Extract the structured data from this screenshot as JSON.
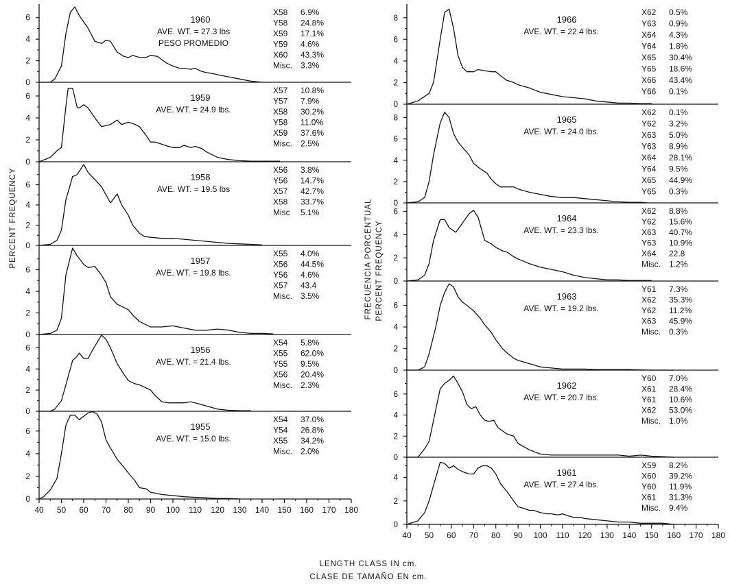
{
  "figure": {
    "xlabel_en": "LENGTH CLASS IN cm.",
    "xlabel_es": "CLASE DE TAMAÑO EN cm.",
    "left_ylabel": "PERCENT FREQUENCY",
    "right_ylabel_es": "FRECUENCIA PORCENTUAL",
    "right_ylabel_en": "PERCENT FREQUENCY",
    "x_ticks": [
      "40",
      "50",
      "60",
      "70",
      "80",
      "90",
      "100",
      "110",
      "120",
      "130",
      "140",
      "150",
      "160",
      "170",
      "180"
    ]
  },
  "chart_data": [
    {
      "type": "line",
      "column": "left",
      "row": 0,
      "year": "1960",
      "ave": "AVE. WT. = 27.3 lbs",
      "ave2": "PESO PROMEDIO",
      "xlim": [
        40,
        180
      ],
      "ylim": [
        0,
        7
      ],
      "yticks": [
        "0",
        "2",
        "4",
        "6"
      ],
      "comp_labels": [
        "X58",
        "Y58",
        "X59",
        "Y59",
        "X60",
        "Misc."
      ],
      "comp_values": [
        "6.9%",
        "24.8%",
        "17.1%",
        "4.6%",
        "43.3%",
        "3.3%"
      ],
      "x": [
        40,
        45,
        47,
        50,
        52,
        54,
        56,
        58,
        60,
        62,
        65,
        68,
        70,
        72,
        75,
        78,
        80,
        82,
        85,
        88,
        90,
        93,
        95,
        97,
        100,
        103,
        105,
        108,
        110,
        113,
        115,
        118,
        120,
        125,
        130,
        135,
        140
      ],
      "y": [
        0,
        0,
        0.3,
        1.5,
        4.5,
        6.5,
        7.0,
        6.2,
        5.6,
        5.0,
        3.8,
        3.6,
        3.9,
        3.8,
        2.8,
        2.4,
        2.3,
        2.5,
        2.3,
        2.3,
        2.5,
        2.4,
        2.1,
        1.8,
        1.5,
        1.3,
        1.3,
        1.2,
        1.3,
        1.0,
        0.9,
        0.8,
        0.7,
        0.5,
        0.3,
        0.1,
        0
      ]
    },
    {
      "type": "line",
      "column": "left",
      "row": 1,
      "year": "1959",
      "ave": "AVE. WT. = 24.9 lbs.",
      "ave2": "",
      "xlim": [
        40,
        180
      ],
      "ylim": [
        0,
        7
      ],
      "yticks": [
        "0",
        "2",
        "4",
        "6"
      ],
      "comp_labels": [
        "X57",
        "Y57",
        "X58",
        "Y58",
        "X59",
        "Misc."
      ],
      "comp_values": [
        "10.8%",
        "7.9%",
        "30.2%",
        "11.0%",
        "37.6%",
        "2.5%"
      ],
      "x": [
        40,
        45,
        48,
        50,
        52,
        53,
        55,
        57,
        58,
        60,
        62,
        65,
        68,
        70,
        72,
        75,
        77,
        80,
        82,
        85,
        88,
        90,
        92,
        95,
        98,
        100,
        103,
        105,
        108,
        110,
        113,
        115,
        118,
        120,
        125,
        130,
        135,
        140,
        145,
        148
      ],
      "y": [
        0,
        0.4,
        1.0,
        1.3,
        5.0,
        6.7,
        6.7,
        5.0,
        4.9,
        5.2,
        4.9,
        4.0,
        3.2,
        3.3,
        3.4,
        3.8,
        3.4,
        3.6,
        3.5,
        3.2,
        2.4,
        1.8,
        1.8,
        1.6,
        1.4,
        1.3,
        1.3,
        1.5,
        1.3,
        1.4,
        1.2,
        0.9,
        0.6,
        0.4,
        0.2,
        0.1,
        0.05,
        0.05,
        0.05,
        0.05
      ]
    },
    {
      "type": "line",
      "column": "left",
      "row": 2,
      "year": "1958",
      "ave": "AVE. WT. = 19.5 lbs",
      "ave2": "",
      "xlim": [
        40,
        180
      ],
      "ylim": [
        0,
        8
      ],
      "yticks": [
        "0",
        "2",
        "4",
        "6"
      ],
      "comp_labels": [
        "X56",
        "Y56",
        "X57",
        "X58",
        "Misc"
      ],
      "comp_values": [
        "3.8%",
        "14.7%",
        "42.7%",
        "33.7%",
        "5.1%"
      ],
      "x": [
        40,
        45,
        48,
        50,
        52,
        55,
        57,
        60,
        62,
        65,
        68,
        70,
        72,
        75,
        77,
        80,
        82,
        85,
        87,
        90,
        95,
        100,
        105,
        110,
        115,
        120,
        125,
        130,
        135,
        140
      ],
      "y": [
        0,
        0.1,
        0.5,
        1.5,
        4.5,
        6.8,
        7.0,
        8.0,
        7.2,
        6.5,
        5.8,
        5.0,
        4.2,
        5.1,
        4.0,
        3.0,
        2.0,
        1.2,
        0.9,
        0.8,
        0.7,
        0.7,
        0.6,
        0.5,
        0.4,
        0.3,
        0.2,
        0.15,
        0.1,
        0.05
      ]
    },
    {
      "type": "line",
      "column": "left",
      "row": 3,
      "year": "1957",
      "ave": "AVE. WT. = 19.8 lbs.",
      "ave2": "",
      "xlim": [
        40,
        180
      ],
      "ylim": [
        0,
        8
      ],
      "yticks": [
        "0",
        "2",
        "4",
        "6"
      ],
      "comp_labels": [
        "X55",
        "X56",
        "Y56",
        "X57",
        "Misc."
      ],
      "comp_values": [
        "4.0%",
        "44.5%",
        "4.6%",
        "43.4",
        "3.5%"
      ],
      "x": [
        40,
        45,
        48,
        50,
        52,
        55,
        57,
        60,
        62,
        65,
        68,
        70,
        72,
        75,
        78,
        80,
        82,
        85,
        88,
        90,
        95,
        100,
        105,
        110,
        115,
        120,
        125,
        130,
        135,
        140,
        145
      ],
      "y": [
        0,
        0.1,
        0.4,
        1.5,
        5.5,
        8.0,
        7.3,
        6.5,
        6.2,
        6.3,
        5.5,
        4.8,
        3.5,
        2.8,
        2.5,
        2.3,
        1.8,
        1.2,
        0.9,
        0.7,
        0.7,
        0.8,
        0.6,
        0.4,
        0.4,
        0.5,
        0.4,
        0.2,
        0.1,
        0.1,
        0.05
      ]
    },
    {
      "type": "line",
      "column": "left",
      "row": 4,
      "year": "1956",
      "ave": "AVE. WT. = 21.4 lbs.",
      "ave2": "",
      "xlim": [
        40,
        180
      ],
      "ylim": [
        0,
        7
      ],
      "yticks": [
        "0",
        "2",
        "4",
        "6"
      ],
      "comp_labels": [
        "X54",
        "X55",
        "Y55",
        "X56",
        "Misc."
      ],
      "comp_values": [
        "5.8%",
        "62.0%",
        "9.5%",
        "20.4%",
        "2.3%"
      ],
      "x": [
        40,
        45,
        47,
        50,
        52,
        55,
        57,
        58,
        60,
        62,
        64,
        66,
        68,
        70,
        72,
        75,
        78,
        80,
        83,
        85,
        87,
        90,
        92,
        95,
        98,
        100,
        105,
        108,
        110,
        115,
        120,
        125,
        130,
        135
      ],
      "y": [
        0,
        0,
        0.2,
        1.0,
        2.5,
        4.8,
        5.2,
        5.5,
        5.0,
        5.0,
        5.8,
        6.5,
        7.2,
        6.8,
        6.0,
        4.5,
        3.5,
        2.9,
        2.6,
        2.5,
        2.3,
        2.0,
        1.5,
        0.9,
        0.8,
        0.8,
        0.8,
        0.9,
        0.8,
        0.5,
        0.2,
        0.1,
        0.05,
        0.05
      ]
    },
    {
      "type": "line",
      "column": "left",
      "row": 5,
      "year": "1955",
      "ave": "AVE. WT. = 15.0 lbs.",
      "ave2": "",
      "xlim": [
        40,
        180
      ],
      "ylim": [
        0,
        7.5
      ],
      "yticks": [
        "0",
        "2",
        "4",
        "6"
      ],
      "comp_labels": [
        "X54",
        "Y54",
        "X55",
        "Misc."
      ],
      "comp_values": [
        "37.0%",
        "26.8%",
        "34.2%",
        "2.0%"
      ],
      "x": [
        40,
        42,
        45,
        48,
        50,
        52,
        54,
        56,
        58,
        60,
        62,
        64,
        66,
        68,
        70,
        72,
        75,
        78,
        80,
        83,
        85,
        88,
        90,
        95,
        100,
        105,
        110,
        115,
        120,
        125,
        130
      ],
      "y": [
        0,
        0.2,
        0.8,
        1.8,
        4.0,
        6.5,
        7.4,
        7.4,
        7.0,
        7.3,
        7.6,
        7.7,
        7.5,
        6.8,
        5.2,
        4.5,
        3.5,
        2.8,
        2.3,
        1.6,
        1.0,
        0.9,
        0.6,
        0.4,
        0.3,
        0.2,
        0.15,
        0.1,
        0.05,
        0.05,
        0
      ]
    },
    {
      "type": "line",
      "column": "right",
      "row": 0,
      "year": "1966",
      "ave": "AVE. WT. = 22.4 lbs.",
      "ave2": "",
      "xlim": [
        40,
        180
      ],
      "ylim": [
        0,
        9
      ],
      "yticks": [
        "0",
        "2",
        "4",
        "6",
        "8"
      ],
      "comp_labels": [
        "X62",
        "Y63",
        "X64",
        "Y64",
        "X65",
        "Y65",
        "X66",
        "Y66"
      ],
      "comp_values": [
        "0.5%",
        "0.9%",
        "4.3%",
        "1.8%",
        "30.4%",
        "18.6%",
        "43.4%",
        "0.1%"
      ],
      "x": [
        40,
        45,
        50,
        52,
        55,
        57,
        59,
        61,
        63,
        65,
        67,
        70,
        72,
        75,
        78,
        80,
        83,
        85,
        88,
        90,
        95,
        100,
        105,
        110,
        115,
        120,
        125,
        130,
        135,
        140,
        145,
        150
      ],
      "y": [
        0,
        0.3,
        1.0,
        2.0,
        6.0,
        8.5,
        8.8,
        7.0,
        4.5,
        3.4,
        3.0,
        3.0,
        3.2,
        3.1,
        3.0,
        3.0,
        2.5,
        2.2,
        2.0,
        1.8,
        1.5,
        1.1,
        0.9,
        0.7,
        0.6,
        0.5,
        0.3,
        0.2,
        0.1,
        0.1,
        0.05,
        0.05
      ]
    },
    {
      "type": "line",
      "column": "right",
      "row": 1,
      "year": "1965",
      "ave": "AVE. WT. = 24.0 lbs.",
      "ave2": "",
      "xlim": [
        40,
        180
      ],
      "ylim": [
        0,
        9
      ],
      "yticks": [
        "0",
        "2",
        "4",
        "6",
        "8"
      ],
      "comp_labels": [
        "X62",
        "Y62",
        "X63",
        "Y63",
        "X64",
        "Y64",
        "X65",
        "Y65"
      ],
      "comp_values": [
        "0.1%",
        "3.2%",
        "5.0%",
        "8.9%",
        "28.1%",
        "9.5%",
        "44.9%",
        "0.3%"
      ],
      "x": [
        40,
        45,
        48,
        50,
        52,
        55,
        57,
        59,
        61,
        63,
        65,
        68,
        70,
        73,
        76,
        78,
        80,
        82,
        85,
        88,
        90,
        95,
        100,
        105,
        110,
        115,
        120,
        125,
        130,
        135,
        140,
        145,
        148
      ],
      "y": [
        0,
        0.1,
        0.5,
        2.0,
        4.5,
        7.5,
        8.5,
        8.0,
        6.5,
        5.7,
        5.2,
        4.5,
        3.7,
        3.2,
        2.8,
        2.2,
        1.8,
        1.5,
        1.5,
        1.5,
        1.3,
        1.0,
        0.8,
        0.6,
        0.5,
        0.5,
        0.4,
        0.3,
        0.2,
        0.1,
        0.05,
        0.05,
        0
      ]
    },
    {
      "type": "line",
      "column": "right",
      "row": 2,
      "year": "1964",
      "ave": "AVE. WT. = 23.3 lbs.",
      "ave2": "",
      "xlim": [
        40,
        180
      ],
      "ylim": [
        0,
        6.5
      ],
      "yticks": [
        "0",
        "2",
        "4",
        "6"
      ],
      "comp_labels": [
        "X62",
        "Y62",
        "X63",
        "Y63",
        "X64",
        "Misc."
      ],
      "comp_values": [
        "8.8%",
        "15.6%",
        "40.7%",
        "10.9%",
        "22.8",
        "1.2%"
      ],
      "x": [
        40,
        45,
        48,
        50,
        52,
        55,
        57,
        59,
        62,
        65,
        68,
        70,
        72,
        75,
        78,
        80,
        83,
        85,
        88,
        90,
        95,
        100,
        105,
        110,
        115,
        120,
        125,
        130,
        135,
        140,
        145,
        150
      ],
      "y": [
        0,
        0.1,
        0.5,
        1.5,
        3.5,
        5.3,
        5.3,
        4.6,
        4.2,
        5.0,
        5.8,
        6.1,
        5.5,
        3.5,
        3.2,
        2.9,
        2.6,
        2.5,
        2.1,
        1.9,
        1.5,
        1.2,
        1.0,
        0.8,
        0.5,
        0.3,
        0.2,
        0.1,
        0.1,
        0.05,
        0.05,
        0.05
      ]
    },
    {
      "type": "line",
      "column": "right",
      "row": 3,
      "year": "1963",
      "ave": "AVE. WT. = 19.2 lbs.",
      "ave2": "",
      "xlim": [
        40,
        180
      ],
      "ylim": [
        0,
        8
      ],
      "yticks": [
        "0",
        "2",
        "4",
        "6"
      ],
      "comp_labels": [
        "Y61",
        "X62",
        "Y62",
        "X63",
        "Misc."
      ],
      "comp_values": [
        "7.3%",
        "35.3%",
        "11.2%",
        "45.9%",
        "0.3%"
      ],
      "x": [
        40,
        45,
        48,
        50,
        53,
        55,
        57,
        59,
        61,
        63,
        65,
        67,
        70,
        73,
        75,
        78,
        80,
        83,
        85,
        88,
        90,
        95,
        100,
        105,
        110,
        115,
        120,
        125,
        130,
        140,
        150,
        160
      ],
      "y": [
        0,
        0,
        0.3,
        1.5,
        4.0,
        6.0,
        7.2,
        8.0,
        7.7,
        6.8,
        6.3,
        6.0,
        5.5,
        4.8,
        4.2,
        3.5,
        2.8,
        2.0,
        1.6,
        1.1,
        0.9,
        0.6,
        0.3,
        0.2,
        0.1,
        0.1,
        0.1,
        0.05,
        0.05,
        0.05,
        0,
        0
      ]
    },
    {
      "type": "line",
      "column": "right",
      "row": 4,
      "year": "1962",
      "ave": "AVE. WT. = 20.7 lbs.",
      "ave2": "",
      "xlim": [
        40,
        180
      ],
      "ylim": [
        0,
        8
      ],
      "yticks": [
        "0",
        "2",
        "4",
        "6"
      ],
      "comp_labels": [
        "Y60",
        "X61",
        "Y61",
        "X62",
        "Misc."
      ],
      "comp_values": [
        "7.0%",
        "28.4%",
        "10.6%",
        "53.0%",
        "1.0%"
      ],
      "x": [
        40,
        45,
        48,
        50,
        52,
        55,
        57,
        59,
        61,
        63,
        65,
        67,
        69,
        71,
        73,
        75,
        77,
        79,
        81,
        83,
        85,
        88,
        90,
        95,
        100,
        105,
        110,
        115,
        120,
        125,
        130,
        135,
        140,
        145,
        150,
        160
      ],
      "y": [
        0,
        0,
        0.8,
        1.5,
        3.5,
        6.5,
        7.0,
        7.3,
        7.7,
        7.0,
        6.2,
        5.0,
        4.6,
        4.8,
        4.0,
        3.5,
        3.4,
        3.5,
        2.8,
        2.5,
        2.2,
        2.0,
        1.3,
        0.7,
        0.3,
        0.2,
        0.2,
        0.2,
        0.2,
        0.2,
        0.2,
        0.2,
        0.1,
        0.2,
        0.1,
        0
      ]
    },
    {
      "type": "line",
      "column": "right",
      "row": 5,
      "year": "1961",
      "ave": "AVE. WT. = 27.4 lbs.",
      "ave2": "",
      "xlim": [
        40,
        180
      ],
      "ylim": [
        0,
        5.5
      ],
      "yticks": [
        "0",
        "2",
        "4"
      ],
      "comp_labels": [
        "X59",
        "X60",
        "Y60",
        "X61",
        "Misc."
      ],
      "comp_values": [
        "8.2%",
        "39.2%",
        "11.9%",
        "31.3%",
        "9.4%"
      ],
      "x": [
        40,
        45,
        48,
        50,
        53,
        55,
        57,
        59,
        61,
        63,
        65,
        68,
        70,
        72,
        74,
        76,
        78,
        80,
        82,
        85,
        88,
        90,
        92,
        95,
        97,
        100,
        103,
        105,
        108,
        110,
        113,
        115,
        118,
        120,
        125,
        130,
        135,
        140,
        145,
        150,
        155,
        160
      ],
      "y": [
        0,
        0.3,
        1.0,
        2.0,
        4.0,
        5.3,
        5.2,
        4.8,
        5.0,
        4.7,
        4.5,
        4.3,
        4.3,
        4.8,
        5.0,
        5.0,
        4.8,
        4.3,
        3.5,
        2.8,
        2.0,
        1.5,
        1.4,
        1.2,
        1.2,
        1.0,
        0.9,
        0.9,
        0.8,
        0.9,
        0.7,
        0.6,
        0.6,
        0.5,
        0.4,
        0.3,
        0.2,
        0.2,
        0.1,
        0.1,
        0.1,
        0
      ]
    }
  ]
}
